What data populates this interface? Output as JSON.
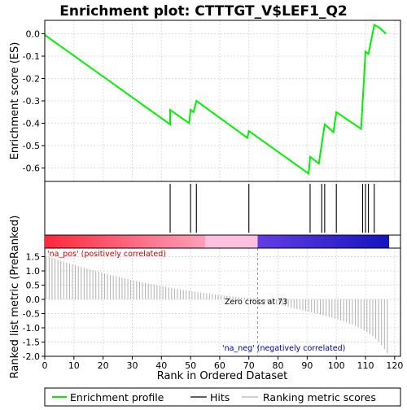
{
  "chart_data": {
    "type": "line",
    "title": "Enrichment plot: CTTTGT_V$LEF1_Q2",
    "top_panel": {
      "ylabel": "Enrichment score (ES)",
      "ylim": [
        -0.66,
        0.06
      ],
      "yticks": [
        0.0,
        -0.1,
        -0.2,
        -0.3,
        -0.4,
        -0.5,
        -0.6
      ],
      "ytick_labels": [
        "0.0",
        "-0.1",
        "-0.2",
        "-0.3",
        "-0.4",
        "-0.5",
        "-0.6"
      ],
      "series": [
        {
          "name": "Enrichment profile",
          "color": "#00ee00",
          "x": [
            0,
            43,
            43,
            49.5,
            50,
            51,
            52,
            69.5,
            70,
            90.5,
            91,
            94,
            96,
            99,
            100,
            108.5,
            109.5,
            110,
            111,
            113,
            115,
            117
          ],
          "y": [
            -0.005,
            -0.405,
            -0.34,
            -0.4,
            -0.34,
            -0.35,
            -0.3,
            -0.465,
            -0.435,
            -0.625,
            -0.55,
            -0.58,
            -0.405,
            -0.44,
            -0.35,
            -0.425,
            -0.2,
            -0.08,
            -0.09,
            0.04,
            0.025,
            0.0
          ]
        }
      ]
    },
    "hits": {
      "x": [
        43,
        50,
        52,
        70,
        91,
        95,
        96,
        100,
        109,
        110,
        111,
        113
      ]
    },
    "bottom_panel": {
      "ylabel": "Ranked list metric (PreRanked)",
      "xlabel": "Rank in Ordered Dataset",
      "ylim": [
        -2.0,
        1.8
      ],
      "yticks": [
        1.5,
        1.0,
        0.5,
        0.0,
        -0.5,
        -1.0,
        -1.5,
        -2.0
      ],
      "ytick_labels": [
        "1.5",
        "1.0",
        "0.5",
        "0.0",
        "-0.5",
        "-1.0",
        "-1.5",
        "-2.0"
      ],
      "xlim": [
        0,
        122
      ],
      "xticks": [
        0,
        10,
        20,
        30,
        40,
        50,
        60,
        70,
        80,
        90,
        100,
        110,
        120
      ],
      "xtick_labels": [
        "0",
        "10",
        "20",
        "30",
        "40",
        "50",
        "60",
        "70",
        "80",
        "90",
        "100",
        "110",
        "120"
      ],
      "n_ranks": 118,
      "metric_start": 1.5,
      "metric_zero_cross": 73,
      "metric_end": -1.9,
      "zero_cross_label": "Zero cross at 73",
      "pos_label": "'na_pos' (positively correlated)",
      "neg_label": "'na_neg' (negatively correlated)",
      "pos_label_color": "#cc0000",
      "neg_label_color": "#0000aa"
    },
    "legend": {
      "placement": "bottom",
      "entries": [
        {
          "label": "Enrichment profile",
          "color": "#00ee00"
        },
        {
          "label": "Hits",
          "color": "#000000"
        },
        {
          "label": "Ranking metric scores",
          "color": "#b0b0b0"
        }
      ]
    },
    "grid": true
  }
}
